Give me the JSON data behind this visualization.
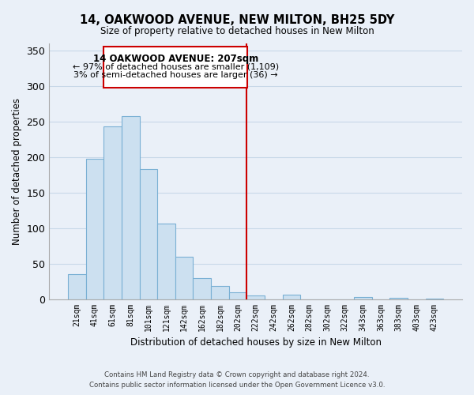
{
  "title": "14, OAKWOOD AVENUE, NEW MILTON, BH25 5DY",
  "subtitle": "Size of property relative to detached houses in New Milton",
  "xlabel": "Distribution of detached houses by size in New Milton",
  "ylabel": "Number of detached properties",
  "bar_labels": [
    "21sqm",
    "41sqm",
    "61sqm",
    "81sqm",
    "101sqm",
    "121sqm",
    "142sqm",
    "162sqm",
    "182sqm",
    "202sqm",
    "222sqm",
    "242sqm",
    "262sqm",
    "282sqm",
    "302sqm",
    "322sqm",
    "343sqm",
    "363sqm",
    "383sqm",
    "403sqm",
    "423sqm"
  ],
  "bar_values": [
    35,
    198,
    243,
    258,
    183,
    106,
    60,
    30,
    18,
    10,
    5,
    0,
    6,
    0,
    0,
    0,
    3,
    0,
    2,
    0,
    1
  ],
  "bar_color": "#cce0f0",
  "bar_edge_color": "#7ab0d4",
  "ylim": [
    0,
    360
  ],
  "yticks": [
    0,
    50,
    100,
    150,
    200,
    250,
    300,
    350
  ],
  "property_line_bar_idx": 9,
  "annotation_title": "14 OAKWOOD AVENUE: 207sqm",
  "annotation_line1": "← 97% of detached houses are smaller (1,109)",
  "annotation_line2": "3% of semi-detached houses are larger (36) →",
  "annotation_box_color": "#ffffff",
  "annotation_box_edge": "#cc0000",
  "grid_color": "#c8d8e8",
  "background_color": "#eaf0f8",
  "footer_line1": "Contains HM Land Registry data © Crown copyright and database right 2024.",
  "footer_line2": "Contains public sector information licensed under the Open Government Licence v3.0."
}
